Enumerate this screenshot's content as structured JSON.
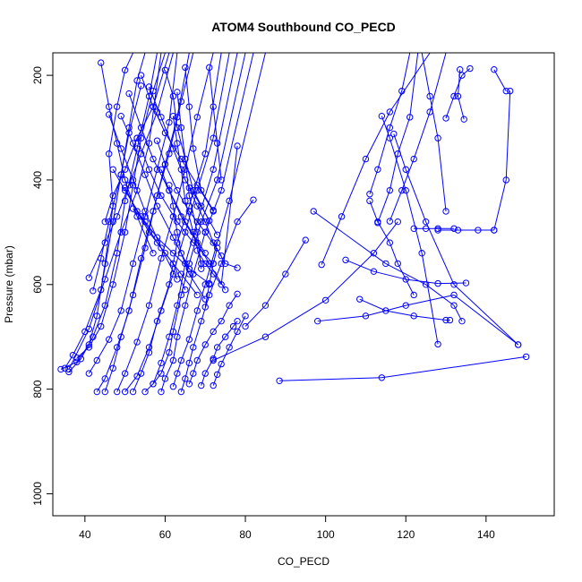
{
  "chart_data": {
    "type": "line",
    "title": "ATOM4 Southbound CO_PECD",
    "xlabel": "CO_PECD",
    "ylabel": "Pressure (mbar)",
    "xlim": [
      32,
      157
    ],
    "ylim": [
      1042,
      157
    ],
    "y_reversed": true,
    "grid": false,
    "legend": "none",
    "color": "#0000ff",
    "xticks": [
      40,
      60,
      80,
      100,
      120,
      140
    ],
    "yticks": [
      200,
      400,
      600,
      800,
      1000
    ],
    "series": [
      {
        "x": [
          34,
          38,
          41,
          43,
          45,
          47,
          46,
          48,
          50,
          52
        ],
        "y": [
          762,
          748,
          715,
          660,
          560,
          450,
          350,
          260,
          190,
          157
        ]
      },
      {
        "x": [
          35,
          37,
          40,
          44,
          47,
          49,
          51,
          53,
          55
        ],
        "y": [
          760,
          735,
          690,
          610,
          480,
          390,
          300,
          210,
          157
        ]
      },
      {
        "x": [
          36,
          39,
          42,
          45,
          48,
          50,
          53,
          56,
          58
        ],
        "y": [
          767,
          742,
          700,
          640,
          540,
          440,
          340,
          240,
          157
        ]
      },
      {
        "x": [
          38,
          41,
          44,
          47,
          50,
          52,
          54,
          57,
          60
        ],
        "y": [
          740,
          720,
          680,
          600,
          500,
          410,
          320,
          230,
          157
        ]
      },
      {
        "x": [
          41,
          43,
          46,
          49,
          52,
          55,
          58,
          61,
          63
        ],
        "y": [
          770,
          745,
          705,
          650,
          560,
          470,
          380,
          290,
          157
        ]
      },
      {
        "x": [
          43,
          45,
          48,
          51,
          54,
          57,
          60,
          63,
          66
        ],
        "y": [
          805,
          780,
          720,
          650,
          550,
          460,
          370,
          280,
          157
        ]
      },
      {
        "x": [
          45,
          47,
          49,
          52,
          55,
          58,
          61,
          64,
          67
        ],
        "y": [
          805,
          760,
          700,
          620,
          530,
          430,
          350,
          250,
          157
        ]
      },
      {
        "x": [
          48,
          50,
          53,
          56,
          59,
          62,
          65,
          68,
          72
        ],
        "y": [
          805,
          770,
          710,
          640,
          550,
          470,
          380,
          280,
          157
        ]
      },
      {
        "x": [
          50,
          53,
          56,
          59,
          62,
          65,
          68,
          72,
          76
        ],
        "y": [
          805,
          775,
          720,
          650,
          580,
          500,
          420,
          320,
          157
        ]
      },
      {
        "x": [
          52,
          54,
          56,
          58,
          61,
          63,
          66,
          70,
          74
        ],
        "y": [
          805,
          770,
          730,
          670,
          600,
          520,
          450,
          350,
          157
        ]
      },
      {
        "x": [
          55,
          57,
          59,
          61,
          63,
          65,
          68,
          72,
          78
        ],
        "y": [
          805,
          790,
          750,
          700,
          640,
          560,
          480,
          380,
          157
        ]
      },
      {
        "x": [
          57,
          59,
          61,
          62,
          64,
          66,
          69,
          73,
          80
        ],
        "y": [
          790,
          770,
          730,
          690,
          620,
          560,
          480,
          400,
          157
        ]
      },
      {
        "x": [
          59,
          60,
          62,
          63,
          65,
          67,
          70,
          74,
          82
        ],
        "y": [
          805,
          780,
          745,
          700,
          640,
          580,
          500,
          420,
          157
        ]
      },
      {
        "x": [
          62,
          63,
          64,
          66,
          68,
          70,
          73,
          76,
          85
        ],
        "y": [
          795,
          770,
          745,
          705,
          650,
          600,
          520,
          440,
          157
        ]
      },
      {
        "x": [
          64,
          65,
          66,
          67,
          69,
          71,
          74,
          78,
          82
        ],
        "y": [
          805,
          780,
          750,
          720,
          670,
          620,
          560,
          480,
          438
        ]
      },
      {
        "x": [
          66,
          67,
          68,
          70,
          72,
          74,
          76,
          78
        ],
        "y": [
          790,
          770,
          745,
          715,
          690,
          670,
          640,
          618
        ]
      },
      {
        "x": [
          69,
          70,
          72,
          73,
          75,
          77,
          78
        ],
        "y": [
          793,
          770,
          742,
          720,
          700,
          680,
          670
        ]
      },
      {
        "x": [
          72,
          73,
          74,
          76,
          78,
          80
        ],
        "y": [
          793,
          772,
          752,
          720,
          690,
          660
        ]
      },
      {
        "x": [
          36,
          41,
          45,
          49,
          53,
          56,
          59
        ],
        "y": [
          762,
          685,
          590,
          500,
          420,
          330,
          157
        ]
      },
      {
        "x": [
          41,
          45,
          48,
          51,
          54,
          58,
          62
        ],
        "y": [
          587,
          520,
          470,
          410,
          350,
          270,
          157
        ]
      },
      {
        "x": [
          42,
          44,
          46,
          49,
          51,
          54
        ],
        "y": [
          612,
          550,
          480,
          390,
          310,
          220
        ]
      },
      {
        "x": [
          44,
          46,
          48,
          50,
          53,
          57
        ],
        "y": [
          176,
          260,
          330,
          400,
          470,
          540
        ]
      },
      {
        "x": [
          45,
          47,
          50,
          53,
          57,
          61
        ],
        "y": [
          480,
          430,
          380,
          320,
          260,
          157
        ]
      },
      {
        "x": [
          46,
          49,
          52,
          55,
          59,
          63
        ],
        "y": [
          275,
          340,
          400,
          460,
          530,
          590
        ]
      },
      {
        "x": [
          47,
          50,
          54,
          58,
          62,
          65
        ],
        "y": [
          380,
          420,
          470,
          520,
          560,
          610
        ]
      },
      {
        "x": [
          49,
          52,
          55,
          58,
          62,
          66
        ],
        "y": [
          278,
          330,
          390,
          450,
          510,
          570
        ]
      },
      {
        "x": [
          50,
          53,
          56,
          60,
          64,
          68
        ],
        "y": [
          415,
          460,
          500,
          540,
          580,
          620
        ]
      },
      {
        "x": [
          51,
          54,
          57,
          61,
          65,
          70
        ],
        "y": [
          235,
          300,
          360,
          420,
          480,
          540
        ]
      },
      {
        "x": [
          52,
          55,
          58,
          62,
          66,
          71
        ],
        "y": [
          455,
          480,
          510,
          540,
          570,
          598
        ]
      },
      {
        "x": [
          53,
          56,
          59,
          63,
          67,
          72
        ],
        "y": [
          320,
          380,
          430,
          480,
          520,
          560
        ]
      },
      {
        "x": [
          54,
          57,
          60,
          64,
          68,
          72
        ],
        "y": [
          200,
          260,
          310,
          360,
          410,
          460
        ]
      },
      {
        "x": [
          56,
          59,
          62,
          65,
          69,
          73
        ],
        "y": [
          222,
          280,
          340,
          400,
          450,
          505
        ]
      },
      {
        "x": [
          58,
          60,
          63,
          66,
          70,
          74
        ],
        "y": [
          325,
          370,
          420,
          460,
          500,
          545
        ]
      },
      {
        "x": [
          59,
          61,
          64,
          68,
          71,
          75
        ],
        "y": [
          380,
          420,
          470,
          520,
          560,
          610
        ]
      },
      {
        "x": [
          60,
          62,
          63,
          65,
          67,
          71
        ],
        "y": [
          190,
          240,
          300,
          360,
          420,
          478
        ]
      },
      {
        "x": [
          61,
          62,
          63,
          64,
          66,
          70
        ],
        "y": [
          410,
          450,
          500,
          540,
          580,
          628
        ]
      },
      {
        "x": [
          62,
          63,
          64,
          65,
          67,
          69
        ],
        "y": [
          278,
          330,
          380,
          440,
          500,
          560
        ]
      },
      {
        "x": [
          63,
          64,
          65,
          66,
          68,
          69
        ],
        "y": [
          232,
          300,
          360,
          430,
          500,
          570
        ]
      },
      {
        "x": [
          65,
          66,
          67,
          69,
          72
        ],
        "y": [
          185,
          260,
          340,
          420,
          458
        ]
      },
      {
        "x": [
          66,
          68,
          70,
          72,
          75,
          78
        ],
        "y": [
          415,
          450,
          480,
          520,
          560,
          568
        ]
      },
      {
        "x": [
          68,
          70,
          72,
          74,
          78
        ],
        "y": [
          535,
          560,
          580,
          600,
          335
        ]
      },
      {
        "x": [
          70,
          71,
          72,
          73
        ],
        "y": [
          643,
          600,
          560,
          530
        ]
      },
      {
        "x": [
          71,
          72,
          73,
          74
        ],
        "y": [
          185,
          260,
          330,
          400
        ]
      },
      {
        "x": [
          88.5,
          114,
          150
        ],
        "y": [
          784,
          778,
          738
        ]
      },
      {
        "x": [
          98,
          110,
          120,
          132,
          148
        ],
        "y": [
          670,
          660,
          640,
          620,
          715
        ]
      },
      {
        "x": [
          97,
          115,
          125,
          132,
          134
        ],
        "y": [
          460,
          560,
          600,
          640,
          670
        ]
      },
      {
        "x": [
          99,
          104,
          110,
          116,
          126
        ],
        "y": [
          562,
          470,
          360,
          270,
          157
        ]
      },
      {
        "x": [
          105,
          112,
          120,
          128,
          135
        ],
        "y": [
          553,
          575,
          590,
          598,
          597
        ]
      },
      {
        "x": [
          108.5,
          115,
          122,
          130,
          131
        ],
        "y": [
          628,
          650,
          660,
          668,
          668
        ]
      },
      {
        "x": [
          111,
          113,
          116,
          119,
          121
        ],
        "y": [
          427,
          380,
          300,
          230,
          157
        ]
      },
      {
        "x": [
          111,
          113,
          116,
          118,
          122
        ],
        "y": [
          440,
          480,
          520,
          560,
          620
        ]
      },
      {
        "x": [
          113,
          116,
          118,
          121,
          123
        ],
        "y": [
          482,
          420,
          350,
          280,
          157
        ]
      },
      {
        "x": [
          114,
          116,
          120,
          124,
          128
        ],
        "y": [
          278,
          320,
          420,
          540,
          714
        ]
      },
      {
        "x": [
          116,
          119,
          122,
          126,
          130
        ],
        "y": [
          479,
          420,
          360,
          270,
          157
        ]
      },
      {
        "x": [
          117,
          120,
          125,
          132,
          148
        ],
        "y": [
          312,
          380,
          480,
          600,
          715
        ]
      },
      {
        "x": [
          122,
          125,
          128,
          132
        ],
        "y": [
          493,
          493,
          493,
          493
        ]
      },
      {
        "x": [
          124,
          126,
          128,
          130
        ],
        "y": [
          157,
          240,
          320,
          460
        ]
      },
      {
        "x": [
          128,
          133,
          138,
          142
        ],
        "y": [
          496,
          496,
          496,
          496
        ]
      },
      {
        "x": [
          130,
          132,
          134,
          136
        ],
        "y": [
          282,
          240,
          200,
          187
        ]
      },
      {
        "x": [
          133.5,
          133,
          134.5
        ],
        "y": [
          189,
          240,
          284
        ]
      },
      {
        "x": [
          142,
          145
        ],
        "y": [
          189,
          230
        ]
      },
      {
        "x": [
          142,
          145,
          146
        ],
        "y": [
          496,
          400,
          230
        ]
      },
      {
        "x": [
          72,
          85,
          100,
          112,
          118
        ],
        "y": [
          745,
          700,
          630,
          540,
          480
        ]
      },
      {
        "x": [
          95,
          90,
          85,
          80
        ],
        "y": [
          515,
          580,
          640,
          680
        ]
      }
    ]
  }
}
